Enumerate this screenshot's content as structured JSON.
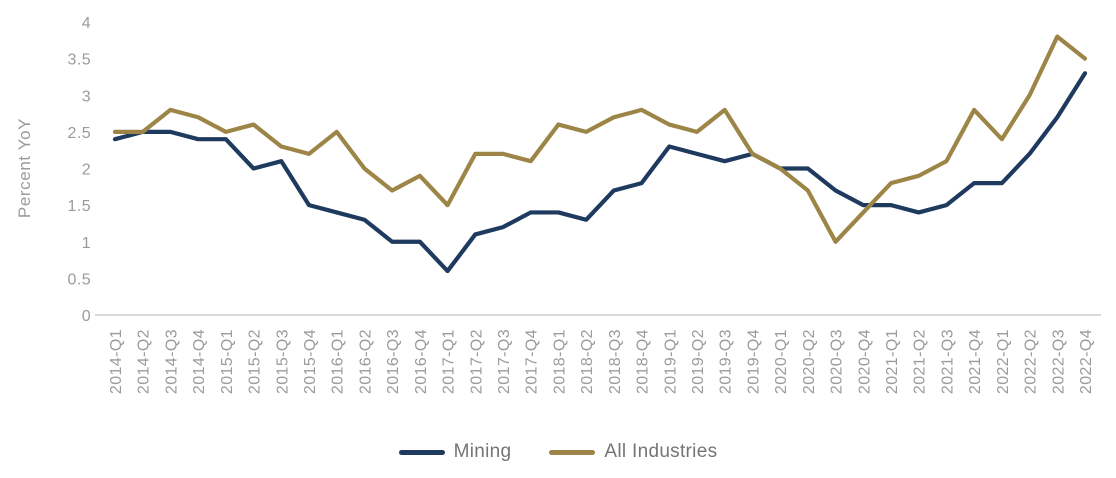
{
  "chart_data": {
    "type": "line",
    "title": "",
    "xlabel": "",
    "ylabel": "Percent YoY",
    "ylim": [
      0,
      4
    ],
    "yticks": [
      0,
      0.5,
      1,
      1.5,
      2,
      2.5,
      3,
      3.5,
      4
    ],
    "grid": false,
    "legend_position": "bottom",
    "categories": [
      "2014-Q1",
      "2014-Q2",
      "2014-Q3",
      "2014-Q4",
      "2015-Q1",
      "2015-Q2",
      "2015-Q3",
      "2015-Q4",
      "2016-Q1",
      "2016-Q2",
      "2016-Q3",
      "2016-Q4",
      "2017-Q1",
      "2017-Q2",
      "2017-Q3",
      "2017-Q4",
      "2018-Q1",
      "2018-Q2",
      "2018-Q3",
      "2018-Q4",
      "2019-Q1",
      "2019-Q2",
      "2019-Q3",
      "2019-Q4",
      "2020-Q1",
      "2020-Q2",
      "2020-Q3",
      "2020-Q4",
      "2021-Q1",
      "2021-Q2",
      "2021-Q3",
      "2021-Q4",
      "2022-Q1",
      "2022-Q2",
      "2022-Q3",
      "2022-Q4"
    ],
    "series": [
      {
        "name": "Mining",
        "color": "#1e3a5f",
        "values": [
          2.4,
          2.5,
          2.5,
          2.4,
          2.4,
          2.0,
          2.1,
          1.5,
          1.4,
          1.3,
          1.0,
          1.0,
          0.6,
          1.1,
          1.2,
          1.4,
          1.4,
          1.3,
          1.7,
          1.8,
          2.3,
          2.2,
          2.1,
          2.2,
          2.0,
          2.0,
          1.7,
          1.5,
          1.5,
          1.4,
          1.5,
          1.8,
          1.8,
          2.2,
          2.7,
          3.3
        ]
      },
      {
        "name": "All Industries",
        "color": "#9c8546",
        "values": [
          2.5,
          2.5,
          2.8,
          2.7,
          2.5,
          2.6,
          2.3,
          2.2,
          2.5,
          2.0,
          1.7,
          1.9,
          1.5,
          2.2,
          2.2,
          2.1,
          2.6,
          2.5,
          2.7,
          2.8,
          2.6,
          2.5,
          2.8,
          2.2,
          2.0,
          1.7,
          1.0,
          1.4,
          1.8,
          1.9,
          2.1,
          2.8,
          2.4,
          3.0,
          3.8,
          3.5
        ]
      }
    ],
    "colors": {
      "axis_text": "#9b9b9b",
      "axis_line": "#d9d9d9",
      "legend_text": "#757575"
    }
  }
}
